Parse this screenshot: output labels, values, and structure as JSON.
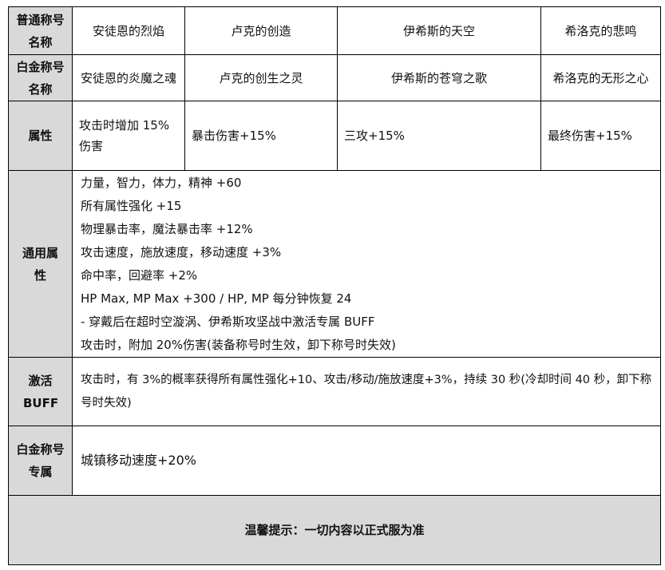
{
  "rows": {
    "normal_title": {
      "label": "普通称号名称",
      "values": [
        "安徒恩的烈焰",
        "卢克的创造",
        "伊希斯的天空",
        "希洛克的悲鸣"
      ]
    },
    "platinum_title": {
      "label": "白金称号名称",
      "values": [
        "安徒恩的炎魔之魂",
        "卢克的创生之灵",
        "伊希斯的苍穹之歌",
        "希洛克的无形之心"
      ]
    },
    "attribute": {
      "label": "属性",
      "values": [
        "攻击时增加 15%伤害",
        "暴击伤害+15%",
        "三攻+15%",
        "最终伤害+15%"
      ]
    },
    "common": {
      "label": "通用属性",
      "lines": [
        "力量，智力，体力，精神  +60",
        "所有属性强化  +15",
        "物理暴击率，魔法暴击率  +12%",
        "攻击速度，施放速度，移动速度  +3%",
        "命中率，回避率  +2%",
        "HP Max, MP Max +300 / HP, MP  每分钟恢复 24",
        "-  穿戴后在超时空漩涡、伊希斯攻坚战中激活专属 BUFF",
        "攻击时，附加 20%伤害(装备称号时生效，卸下称号时失效)"
      ]
    },
    "buff": {
      "label": "激活BUFF",
      "text": "攻击时，有 3%的概率获得所有属性强化+10、攻击/移动/施放速度+3%，持续 30 秒(冷却时间 40 秒，卸下称号时失效)"
    },
    "platinum_exclusive": {
      "label": "白金称号专属",
      "text": "城镇移动速度+20%"
    }
  },
  "footer": "温馨提示：一切内容以正式服为准"
}
